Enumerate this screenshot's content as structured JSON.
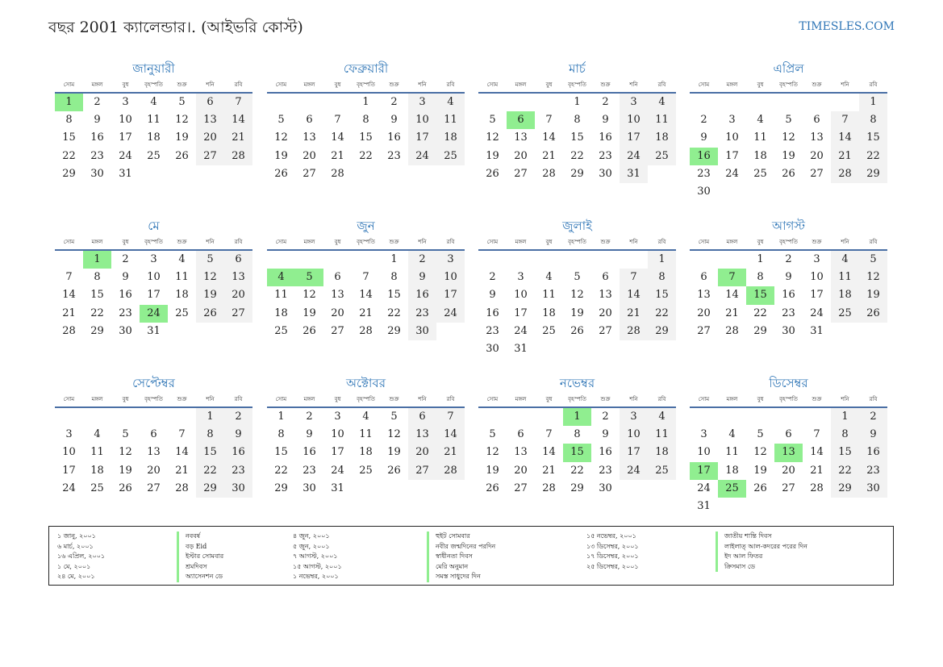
{
  "header": {
    "title": "বছর 2001 ক্যালেন্ডার।. (আইভরি কোস্ট)",
    "site": "TIMESLES.COM"
  },
  "weekdays": [
    "সোম",
    "মঙ্গল",
    "বুধ",
    "বৃহস্পতি",
    "শুক্র",
    "শনি",
    "রবি"
  ],
  "colors": {
    "accent": "#2e75b6",
    "holiday": "#90ee90",
    "weekend": "#f2f2f2"
  },
  "months": [
    {
      "name": "জানুয়ারী",
      "offset": 0,
      "days": 31,
      "holidays": [
        1
      ]
    },
    {
      "name": "ফেব্রুয়ারী",
      "offset": 3,
      "days": 28,
      "holidays": []
    },
    {
      "name": "মার্চ",
      "offset": 3,
      "days": 31,
      "holidays": [
        6
      ]
    },
    {
      "name": "এপ্রিল",
      "offset": 6,
      "days": 30,
      "holidays": [
        16
      ]
    },
    {
      "name": "মে",
      "offset": 1,
      "days": 31,
      "holidays": [
        1,
        24
      ]
    },
    {
      "name": "জুন",
      "offset": 4,
      "days": 30,
      "holidays": [
        4,
        5
      ]
    },
    {
      "name": "জুলাই",
      "offset": 6,
      "days": 31,
      "holidays": []
    },
    {
      "name": "আগস্ট",
      "offset": 2,
      "days": 31,
      "holidays": [
        7,
        15
      ]
    },
    {
      "name": "সেপ্টেম্বর",
      "offset": 5,
      "days": 30,
      "holidays": []
    },
    {
      "name": "অক্টোবর",
      "offset": 0,
      "days": 31,
      "holidays": []
    },
    {
      "name": "নভেম্বর",
      "offset": 3,
      "days": 30,
      "holidays": [
        1,
        15
      ]
    },
    {
      "name": "ডিসেম্বর",
      "offset": 5,
      "days": 31,
      "holidays": [
        13,
        17,
        25
      ]
    }
  ],
  "legend": {
    "col1": [
      {
        "date": "১ জানু, ২০০১",
        "name": "নববর্ষ"
      },
      {
        "date": "৬ মার্চ, ২০০১",
        "name": "বড় Eid"
      },
      {
        "date": "১৬ এপ্রিল, ২০০১",
        "name": "ইস্টার সোমবার"
      },
      {
        "date": "১ মে, ২০০১",
        "name": "শ্রমদিবস"
      },
      {
        "date": "২৪ মে, ২০০১",
        "name": "অ্যাসেনশন ডে"
      }
    ],
    "col2": [
      {
        "date": "৪ জুন, ২০০১",
        "name": "হুইট সোমবার"
      },
      {
        "date": "৫ জুন, ২০০১",
        "name": "নবীর জন্মদিনের পরদিন"
      },
      {
        "date": "৭ আগস্ট, ২০০১",
        "name": "স্বাধীনতা দিবস"
      },
      {
        "date": "১৫ আগস্ট, ২০০১",
        "name": "মেরি অনুমান"
      },
      {
        "date": "১ নভেম্বর, ২০০১",
        "name": "সমস্ত সাধুদের দিন"
      }
    ],
    "col3": [
      {
        "date": "১৫ নভেম্বর, ২০০১",
        "name": "জাতীয় শান্তি দিবস"
      },
      {
        "date": "১৩ ডিসেম্বর, ২০০১",
        "name": "লাইলাত্ আল-কদরের পরের দিন"
      },
      {
        "date": "১৭ ডিসেম্বর, ২০০১",
        "name": "ইদ আল ফিতর"
      },
      {
        "date": "২৫ ডিসেম্বর, ২০০১",
        "name": "ক্রিসমাস ডে"
      }
    ]
  }
}
